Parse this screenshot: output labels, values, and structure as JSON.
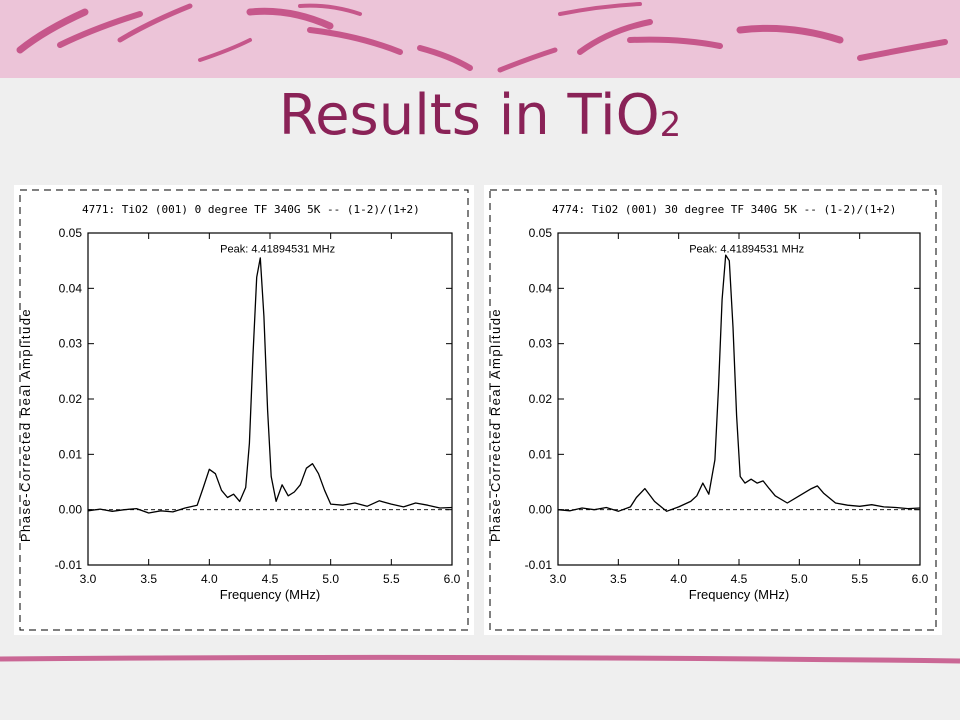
{
  "slide": {
    "title_main": "Results in TiO",
    "title_sub": "2",
    "accent_color": "#8a2257",
    "banner_color": "#ecc4d8"
  },
  "chart_data": [
    {
      "type": "line",
      "header": "4771: TiO2 (001)   0 degree TF 340G    5K -- (1-2)/(1+2)",
      "peak_label": "Peak: 4.41894531 MHz",
      "peak_x": 4.41894531,
      "xlabel": "Frequency (MHz)",
      "ylabel": "Phase-Corrected Real Amplitude",
      "xlim": [
        3.0,
        6.0
      ],
      "ylim": [
        -0.01,
        0.05
      ],
      "x_ticks": [
        "3.0",
        "3.5",
        "4.0",
        "4.5",
        "5.0",
        "5.5",
        "6.0"
      ],
      "y_ticks": [
        "-0.01",
        "0.00",
        "0.01",
        "0.02",
        "0.03",
        "0.04",
        "0.05"
      ],
      "baseline": 0.0,
      "x": [
        3.0,
        3.1,
        3.2,
        3.3,
        3.4,
        3.5,
        3.6,
        3.7,
        3.8,
        3.9,
        3.95,
        4.0,
        4.05,
        4.1,
        4.15,
        4.2,
        4.25,
        4.3,
        4.33,
        4.36,
        4.39,
        4.42,
        4.45,
        4.48,
        4.51,
        4.55,
        4.6,
        4.65,
        4.7,
        4.75,
        4.8,
        4.85,
        4.9,
        4.95,
        5.0,
        5.1,
        5.2,
        5.3,
        5.4,
        5.5,
        5.6,
        5.7,
        5.8,
        5.9,
        6.0
      ],
      "y": [
        -0.0002,
        0.0001,
        -0.0003,
        0.0,
        0.0002,
        -0.0006,
        -0.0002,
        -0.0004,
        0.0003,
        0.0008,
        0.004,
        0.0073,
        0.0065,
        0.0035,
        0.0022,
        0.0028,
        0.0015,
        0.004,
        0.012,
        0.028,
        0.042,
        0.0455,
        0.035,
        0.018,
        0.006,
        0.0015,
        0.0045,
        0.0025,
        0.0032,
        0.0045,
        0.0075,
        0.0083,
        0.0065,
        0.0035,
        0.001,
        0.0008,
        0.0012,
        0.0006,
        0.0016,
        0.001,
        0.0005,
        0.0012,
        0.0008,
        0.0003,
        0.0004
      ]
    },
    {
      "type": "line",
      "header": "4774: TiO2 (001)   30 degree TF 340G    5K -- (1-2)/(1+2)",
      "peak_label": "Peak: 4.41894531 MHz",
      "peak_x": 4.41894531,
      "xlabel": "Frequency (MHz)",
      "ylabel": "Phase-Corrected Real Amplitude",
      "xlim": [
        3.0,
        6.0
      ],
      "ylim": [
        -0.01,
        0.05
      ],
      "x_ticks": [
        "3.0",
        "3.5",
        "4.0",
        "4.5",
        "5.0",
        "5.5",
        "6.0"
      ],
      "y_ticks": [
        "-0.01",
        "0.00",
        "0.01",
        "0.02",
        "0.03",
        "0.04",
        "0.05"
      ],
      "baseline": 0.0,
      "x": [
        3.0,
        3.1,
        3.2,
        3.3,
        3.4,
        3.5,
        3.6,
        3.65,
        3.72,
        3.8,
        3.9,
        4.0,
        4.1,
        4.15,
        4.2,
        4.25,
        4.3,
        4.33,
        4.36,
        4.39,
        4.42,
        4.45,
        4.48,
        4.51,
        4.55,
        4.6,
        4.65,
        4.7,
        4.75,
        4.8,
        4.9,
        5.0,
        5.1,
        5.15,
        5.2,
        5.3,
        5.4,
        5.5,
        5.6,
        5.7,
        5.8,
        5.9,
        6.0
      ],
      "y": [
        0.0,
        -0.0002,
        0.0003,
        0.0,
        0.0004,
        -0.0003,
        0.0005,
        0.0022,
        0.0038,
        0.0015,
        -0.0003,
        0.0005,
        0.0015,
        0.0025,
        0.0048,
        0.0028,
        0.009,
        0.022,
        0.038,
        0.046,
        0.045,
        0.033,
        0.017,
        0.006,
        0.0048,
        0.0055,
        0.0048,
        0.0052,
        0.0038,
        0.0025,
        0.0012,
        0.0025,
        0.0038,
        0.0043,
        0.003,
        0.0012,
        0.0008,
        0.0006,
        0.0009,
        0.0005,
        0.0004,
        0.0002,
        0.0003
      ]
    }
  ]
}
